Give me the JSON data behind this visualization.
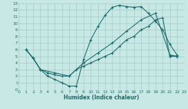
{
  "bg_color": "#c8e8e5",
  "grid_color": "#a0c8c4",
  "line_color": "#1a6b6b",
  "xlim": [
    0,
    23
  ],
  "ylim": [
    0,
    13
  ],
  "xticks": [
    0,
    1,
    2,
    3,
    4,
    5,
    6,
    7,
    8,
    9,
    10,
    11,
    12,
    13,
    14,
    15,
    16,
    17,
    18,
    19,
    20,
    21,
    22,
    23
  ],
  "yticks": [
    0,
    1,
    2,
    3,
    4,
    5,
    6,
    7,
    8,
    9,
    10,
    11,
    12,
    13
  ],
  "xlabel": "Humidex (Indice chaleur)",
  "curve1_x": [
    1,
    2,
    3,
    4,
    5,
    6,
    7,
    8,
    9,
    10,
    11,
    12,
    13,
    14,
    15,
    16,
    17,
    18,
    19,
    20,
    21,
    22
  ],
  "curve1_y": [
    6.0,
    4.7,
    3.0,
    2.0,
    1.5,
    1.0,
    0.5,
    0.5,
    4.5,
    7.5,
    9.5,
    11.2,
    12.4,
    12.7,
    12.5,
    12.4,
    12.5,
    11.5,
    10.3,
    9.0,
    6.8,
    5.2
  ],
  "curve2_x": [
    1,
    2,
    3,
    4,
    5,
    6,
    7,
    8,
    9,
    10,
    11,
    12,
    13,
    14,
    15,
    16,
    17,
    18,
    19,
    20,
    21,
    22
  ],
  "curve2_y": [
    6.0,
    4.7,
    3.0,
    2.5,
    2.2,
    2.0,
    2.0,
    3.0,
    3.5,
    4.0,
    4.5,
    5.0,
    5.5,
    6.5,
    7.5,
    8.0,
    9.0,
    9.5,
    10.5,
    10.8,
    5.0,
    5.0
  ],
  "curve3_x": [
    1,
    2,
    3,
    5,
    7,
    9,
    11,
    13,
    15,
    17,
    19,
    21,
    22
  ],
  "curve3_y": [
    6.0,
    4.7,
    3.0,
    2.5,
    2.0,
    4.0,
    5.5,
    7.0,
    8.8,
    10.5,
    11.5,
    5.2,
    5.0
  ]
}
